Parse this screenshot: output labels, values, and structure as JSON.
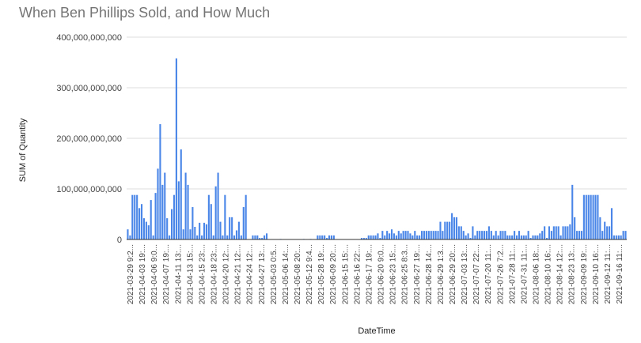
{
  "chart_data": {
    "type": "bar",
    "title": "When Ben Phillips Sold, and How Much",
    "xlabel": "DateTime",
    "ylabel": "SUM of Quantity",
    "ylim": [
      0,
      400000000000
    ],
    "yticks": [
      {
        "value": 0,
        "label": "0"
      },
      {
        "value": 100000000000,
        "label": "100,000,000,000"
      },
      {
        "value": 200000000000,
        "label": "200,000,000,000"
      },
      {
        "value": 300000000000,
        "label": "300,000,000,000"
      },
      {
        "value": 400000000000,
        "label": "400,000,000,000"
      }
    ],
    "xtick_labels": [
      "2021-03-29 9:2...",
      "2021-04-03 19:...",
      "2021-04-06 9:0...",
      "2021-04-07 19:...",
      "2021-04-11 13:...",
      "2021-04-13 15:...",
      "2021-04-15 23:...",
      "2021-04-18 23:...",
      "2021-04-20 12:...",
      "2021-04-21 12:...",
      "2021-04-24 12:...",
      "2021-04-27 13:...",
      "2021-05-03 0:5...",
      "2021-05-06 14:...",
      "2021-05-08 20:...",
      "2021-05-12 9:4...",
      "2021-05-28 19:...",
      "2021-06-09 20:...",
      "2021-06-15 15:...",
      "2021-06-16 22:...",
      "2021-06-17 19:...",
      "2021-06-20 9:0...",
      "2021-06-23 15:...",
      "2021-06-25 8:3...",
      "2021-06-27 19:...",
      "2021-06-28 14:...",
      "2021-06-29 1:3...",
      "2021-06-29 20:...",
      "2021-07-03 13:...",
      "2021-07-07 22:...",
      "2021-07-20 11:...",
      "2021-07-26 7:2...",
      "2021-07-28 11:...",
      "2021-07-31 11:...",
      "2021-08-06 18:...",
      "2021-08-10 16:...",
      "2021-08-14 12:...",
      "2021-08-23 13:...",
      "2021-09-09 19:...",
      "2021-09-10 16:...",
      "2021-09-12 11:...",
      "2021-09-16 11:..."
    ],
    "values_billions": [
      20,
      8,
      88,
      88,
      88,
      62,
      70,
      42,
      35,
      28,
      78,
      8,
      92,
      140,
      228,
      108,
      132,
      42,
      8,
      60,
      88,
      358,
      115,
      178,
      20,
      132,
      108,
      20,
      64,
      25,
      8,
      33,
      8,
      33,
      30,
      88,
      70,
      8,
      105,
      132,
      35,
      8,
      88,
      8,
      44,
      44,
      8,
      18,
      35,
      8,
      64,
      88,
      0,
      0,
      8,
      8,
      8,
      3,
      3,
      8,
      12,
      0,
      0,
      0,
      0,
      0,
      1,
      0,
      0,
      0,
      0,
      0,
      0,
      0,
      0,
      0,
      1,
      0,
      0,
      1,
      0,
      0,
      8,
      8,
      8,
      8,
      3,
      8,
      8,
      8,
      0,
      0,
      0,
      0,
      0,
      0,
      0,
      0,
      0,
      0,
      0,
      3,
      3,
      3,
      8,
      8,
      8,
      8,
      12,
      3,
      17,
      8,
      17,
      12,
      20,
      12,
      8,
      17,
      12,
      17,
      17,
      17,
      12,
      8,
      17,
      8,
      8,
      17,
      17,
      17,
      17,
      17,
      17,
      17,
      17,
      35,
      17,
      35,
      35,
      35,
      52,
      44,
      44,
      26,
      26,
      17,
      8,
      12,
      3,
      26,
      8,
      17,
      17,
      17,
      17,
      17,
      26,
      17,
      8,
      17,
      8,
      17,
      17,
      17,
      8,
      8,
      8,
      17,
      8,
      17,
      8,
      8,
      8,
      17,
      3,
      8,
      8,
      8,
      12,
      17,
      26,
      3,
      26,
      17,
      26,
      26,
      26,
      8,
      26,
      26,
      26,
      30,
      108,
      44,
      17,
      17,
      17,
      88,
      88,
      88,
      88,
      88,
      88,
      88,
      44,
      17,
      35,
      26,
      26,
      62,
      8,
      8,
      8,
      8,
      17,
      17
    ],
    "bar_color": "#4a86e8",
    "grid": true,
    "legend": "none"
  }
}
